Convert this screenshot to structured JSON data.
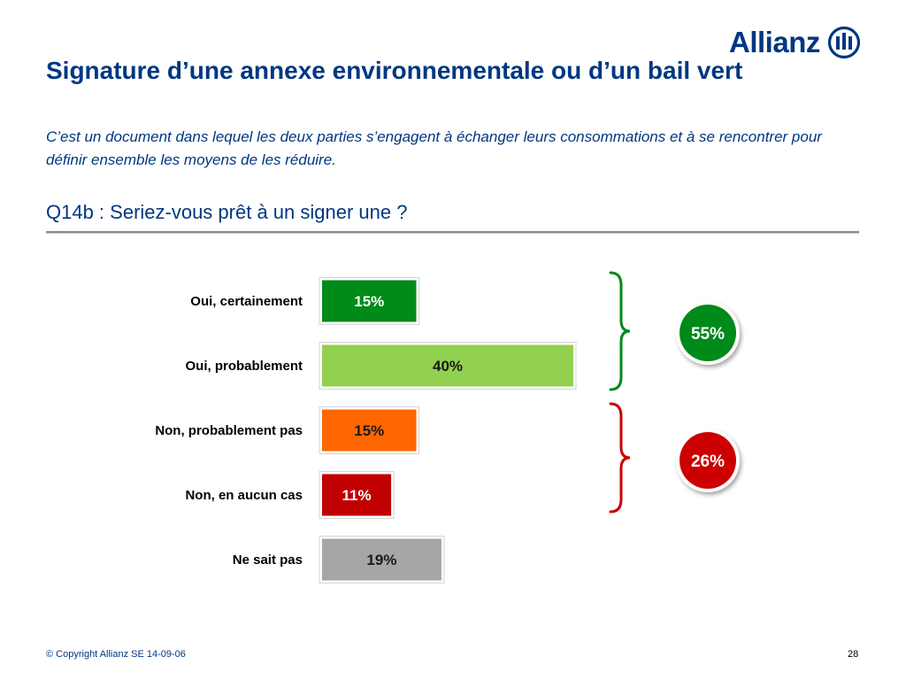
{
  "header": {
    "logo_text": "Allianz",
    "title": "Signature d’une annexe environnementale ou d’un bail vert"
  },
  "intro_text": "C’est un document dans lequel les deux parties s’engagent à échanger leurs consommations et à se rencontrer pour définir ensemble les moyens de les réduire.",
  "question": "Q14b : Seriez-vous prêt à un signer une ?",
  "colors": {
    "brand_blue": "#003781",
    "oui_certainement": "#008a1a",
    "oui_probablement": "#92d050",
    "non_probablement_pas": "#ff6600",
    "non_aucun_cas": "#c00000",
    "ne_sait_pas": "#a6a6a6",
    "group_yes": "#008a1a",
    "group_no": "#cc0000"
  },
  "chart_data": {
    "type": "bar",
    "orientation": "horizontal",
    "categories": [
      "Oui, certainement",
      "Oui, probablement",
      "Non, probablement pas",
      "Non, en aucun cas",
      "Ne sait pas"
    ],
    "values": [
      15,
      40,
      15,
      11,
      19
    ],
    "value_labels": [
      "15%",
      "40%",
      "15%",
      "11%",
      "19%"
    ],
    "xlim": [
      0,
      40
    ],
    "groups": [
      {
        "categories": [
          "Oui, certainement",
          "Oui, probablement"
        ],
        "total": 55,
        "label": "55%"
      },
      {
        "categories": [
          "Non, probablement pas",
          "Non, en aucun cas"
        ],
        "total": 26,
        "label": "26%"
      }
    ]
  },
  "footer": {
    "copyright": "© Copyright Allianz SE 14-09-06",
    "page_number": "28"
  }
}
